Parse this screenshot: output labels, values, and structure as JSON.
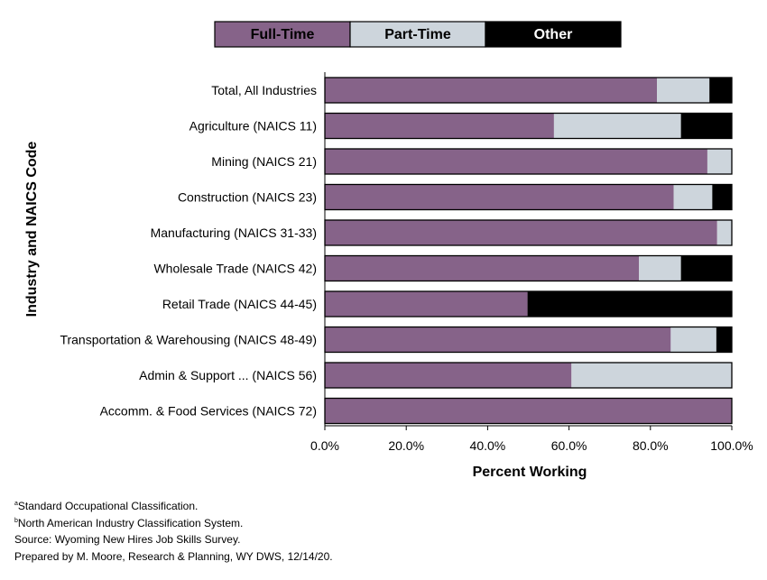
{
  "chart_data": {
    "type": "bar",
    "orientation": "horizontal",
    "stacked": true,
    "xlabel": "Percent Working",
    "ylabel": "Industry and NAICS Code",
    "xlim": [
      0,
      100
    ],
    "xticks": [
      0,
      20,
      40,
      60,
      80,
      100
    ],
    "xtick_labels": [
      "0.0%",
      "20.0%",
      "40.0%",
      "60.0%",
      "80.0%",
      "100.0%"
    ],
    "grid": false,
    "legend_position": "top",
    "categories": [
      "Total, All Industries",
      "Agriculture (NAICS 11)",
      "Mining (NAICS 21)",
      "Construction (NAICS 23)",
      "Manufacturing (NAICS 31-33)",
      "Wholesale Trade (NAICS 42)",
      "Retail Trade (NAICS 44-45)",
      "Transportation & Warehousing (NAICS 48-49)",
      "Admin & Support ... (NAICS 56)",
      "Accomm. & Food Services (NAICS 72)"
    ],
    "series": [
      {
        "name": "Full-Time",
        "color": "#866389",
        "text_color": "#000000",
        "values": [
          81.6,
          56.3,
          94.0,
          85.7,
          96.4,
          77.2,
          49.8,
          85.0,
          60.6,
          100.0
        ]
      },
      {
        "name": "Part-Time",
        "color": "#cdd5dc",
        "text_color": "#000000",
        "values": [
          12.9,
          31.2,
          6.0,
          9.5,
          3.6,
          10.3,
          0.0,
          11.2,
          39.4,
          0.0
        ]
      },
      {
        "name": "Other",
        "color": "#000000",
        "text_color": "#ffffff",
        "values": [
          5.5,
          12.5,
          0.0,
          4.8,
          0.0,
          12.5,
          50.2,
          3.8,
          0.0,
          0.0
        ]
      }
    ]
  },
  "footnotes": [
    {
      "sup": "a",
      "text": "Standard Occupational Classification."
    },
    {
      "sup": "b",
      "text": "North American Industry Classification System."
    },
    {
      "sup": "",
      "text": "Source: Wyoming New Hires Job Skills Survey."
    },
    {
      "sup": "",
      "text": "Prepared by M. Moore, Research & Planning, WY DWS, 12/14/20."
    }
  ]
}
